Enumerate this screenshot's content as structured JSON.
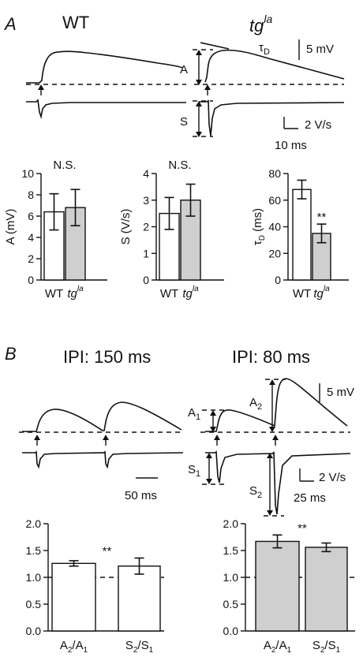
{
  "panel_a": {
    "letter": "A",
    "title_wt": "WT",
    "title_tg_base": "tg",
    "title_tg_sup": "la",
    "trace_labels": {
      "A": "A",
      "S": "S",
      "tau_base": "τ",
      "tau_sub": "D"
    },
    "scale": {
      "mv": "5 mV",
      "vs": "2 V/s",
      "ms": "10 ms"
    }
  },
  "panel_b": {
    "letter": "B",
    "title_left": "IPI: 150 ms",
    "title_right": "IPI: 80 ms",
    "trace_labels": {
      "A1_base": "A",
      "A1_sub": "1",
      "A2_base": "A",
      "A2_sub": "2",
      "S1_base": "S",
      "S1_sub": "1",
      "S2_base": "S",
      "S2_sub": "2"
    },
    "scale": {
      "left_ms": "50 ms",
      "mv": "5 mV",
      "vs": "2 V/s",
      "right_ms": "25 ms"
    }
  },
  "chart_data": [
    {
      "type": "bar",
      "panel": "A",
      "categories": [
        "WT",
        "tg^la"
      ],
      "cat_base": [
        "WT",
        "tg"
      ],
      "cat_sup": [
        "",
        "la"
      ],
      "values": [
        6.4,
        6.8
      ],
      "errors": [
        1.7,
        1.7
      ],
      "ylabel": "A (mV)",
      "ylim": [
        0,
        10
      ],
      "yticks": [
        0,
        2,
        4,
        6,
        8,
        10
      ],
      "annotation": "N.S.",
      "bar_fill": [
        "#ffffff",
        "#cfcfcf"
      ]
    },
    {
      "type": "bar",
      "panel": "A",
      "categories": [
        "WT",
        "tg^la"
      ],
      "cat_base": [
        "WT",
        "tg"
      ],
      "cat_sup": [
        "",
        "la"
      ],
      "values": [
        2.5,
        3.0
      ],
      "errors": [
        0.6,
        0.6
      ],
      "ylabel": "S (V/s)",
      "ylim": [
        0,
        4
      ],
      "yticks": [
        0,
        1,
        2,
        3,
        4
      ],
      "annotation": "N.S.",
      "bar_fill": [
        "#ffffff",
        "#cfcfcf"
      ]
    },
    {
      "type": "bar",
      "panel": "A",
      "categories": [
        "WT",
        "tg^la"
      ],
      "cat_base": [
        "WT",
        "tg"
      ],
      "cat_sup": [
        "",
        "la"
      ],
      "values": [
        68,
        35
      ],
      "errors": [
        7,
        7
      ],
      "ylabel_base": "τ",
      "ylabel_sub": "D",
      "ylabel_rest": " (ms)",
      "ylim": [
        0,
        80
      ],
      "yticks": [
        0,
        20,
        40,
        60,
        80
      ],
      "annotation": "**",
      "bar_fill": [
        "#ffffff",
        "#cfcfcf"
      ]
    },
    {
      "type": "bar",
      "panel": "B",
      "categories": [
        "A2/A1",
        "S2/S1"
      ],
      "cat_base": [
        [
          "A",
          "2",
          "/A",
          "1"
        ],
        [
          "S",
          "2",
          "/S",
          "1"
        ]
      ],
      "values": [
        1.26,
        1.21
      ],
      "errors": [
        0.05,
        0.15
      ],
      "ylim": [
        0,
        2.0
      ],
      "yticks": [
        "0.0",
        "0.5",
        "1.0",
        "1.5",
        "2.0"
      ],
      "reference_line": 1.0,
      "annotation": "**",
      "bar_fill": [
        "#ffffff",
        "#ffffff"
      ]
    },
    {
      "type": "bar",
      "panel": "B",
      "categories": [
        "A2/A1",
        "S2/S1"
      ],
      "cat_base": [
        [
          "A",
          "2",
          "/A",
          "1"
        ],
        [
          "S",
          "2",
          "/S",
          "1"
        ]
      ],
      "values": [
        1.67,
        1.56
      ],
      "errors": [
        0.12,
        0.08
      ],
      "ylim": [
        0,
        2.0
      ],
      "yticks": [
        "0.0",
        "0.5",
        "1.0",
        "1.5",
        "2.0"
      ],
      "reference_line": 1.0,
      "annotation": "**",
      "bar_fill": [
        "#cfcfcf",
        "#cfcfcf"
      ]
    }
  ]
}
